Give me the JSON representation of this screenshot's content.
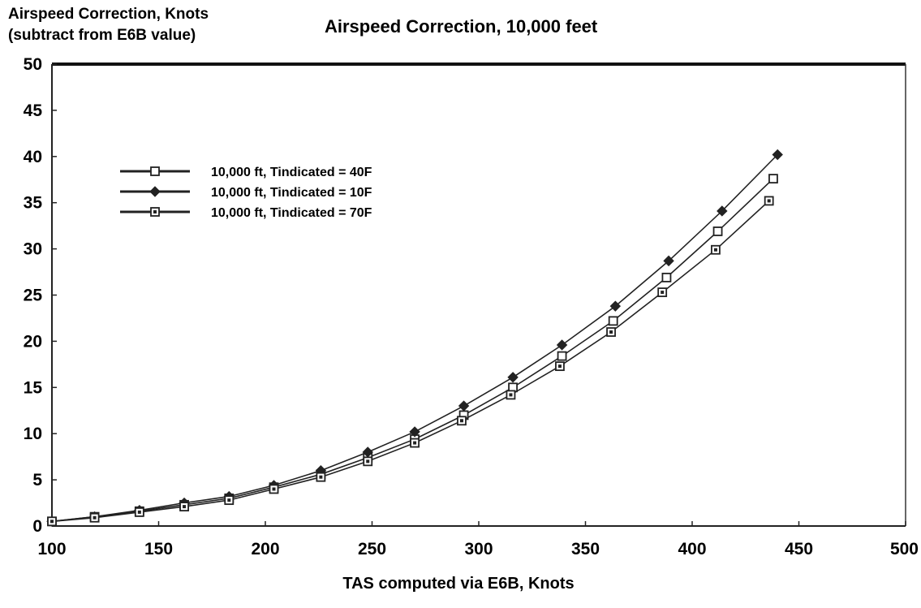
{
  "chart_data": {
    "type": "line",
    "title": "Airspeed Correction, 10,000 feet",
    "ylabel_line1": "Airspeed Correction, Knots",
    "ylabel_line2": "(subtract from E6B value)",
    "xlabel": "TAS computed via E6B, Knots",
    "xlim": [
      100,
      500
    ],
    "ylim": [
      0,
      50
    ],
    "xticks": [
      "100",
      "150",
      "200",
      "250",
      "300",
      "350",
      "400",
      "450",
      "500"
    ],
    "yticks": [
      "0",
      "5",
      "10",
      "15",
      "20",
      "25",
      "30",
      "35",
      "40",
      "45",
      "50"
    ],
    "legend_position": "upper-left",
    "series": [
      {
        "name": "10,000 ft, Tindicated = 40F",
        "marker": "open-square",
        "x": [
          100,
          120,
          141,
          162,
          183,
          204,
          226,
          248,
          270,
          293,
          316,
          339,
          363,
          388,
          412,
          438
        ],
        "y": [
          0.5,
          1.0,
          1.6,
          2.3,
          3.0,
          4.2,
          5.6,
          7.4,
          9.4,
          12.0,
          15.0,
          18.4,
          22.2,
          26.9,
          31.9,
          37.6
        ]
      },
      {
        "name": "10,000 ft, Tindicated = 10F",
        "marker": "filled-diamond",
        "x": [
          100,
          120,
          141,
          162,
          183,
          204,
          226,
          248,
          270,
          293,
          316,
          339,
          364,
          389,
          414,
          440
        ],
        "y": [
          0.5,
          1.0,
          1.7,
          2.5,
          3.2,
          4.4,
          6.0,
          8.0,
          10.2,
          13.0,
          16.1,
          19.6,
          23.8,
          28.7,
          34.1,
          40.2
        ]
      },
      {
        "name": "10,000 ft, Tindicated = 70F",
        "marker": "dotted-square",
        "x": [
          100,
          120,
          141,
          162,
          183,
          204,
          226,
          248,
          270,
          292,
          315,
          338,
          362,
          386,
          411,
          436
        ],
        "y": [
          0.5,
          0.9,
          1.5,
          2.1,
          2.8,
          4.0,
          5.3,
          7.0,
          9.0,
          11.4,
          14.2,
          17.3,
          21.0,
          25.3,
          29.9,
          35.2
        ]
      }
    ]
  }
}
